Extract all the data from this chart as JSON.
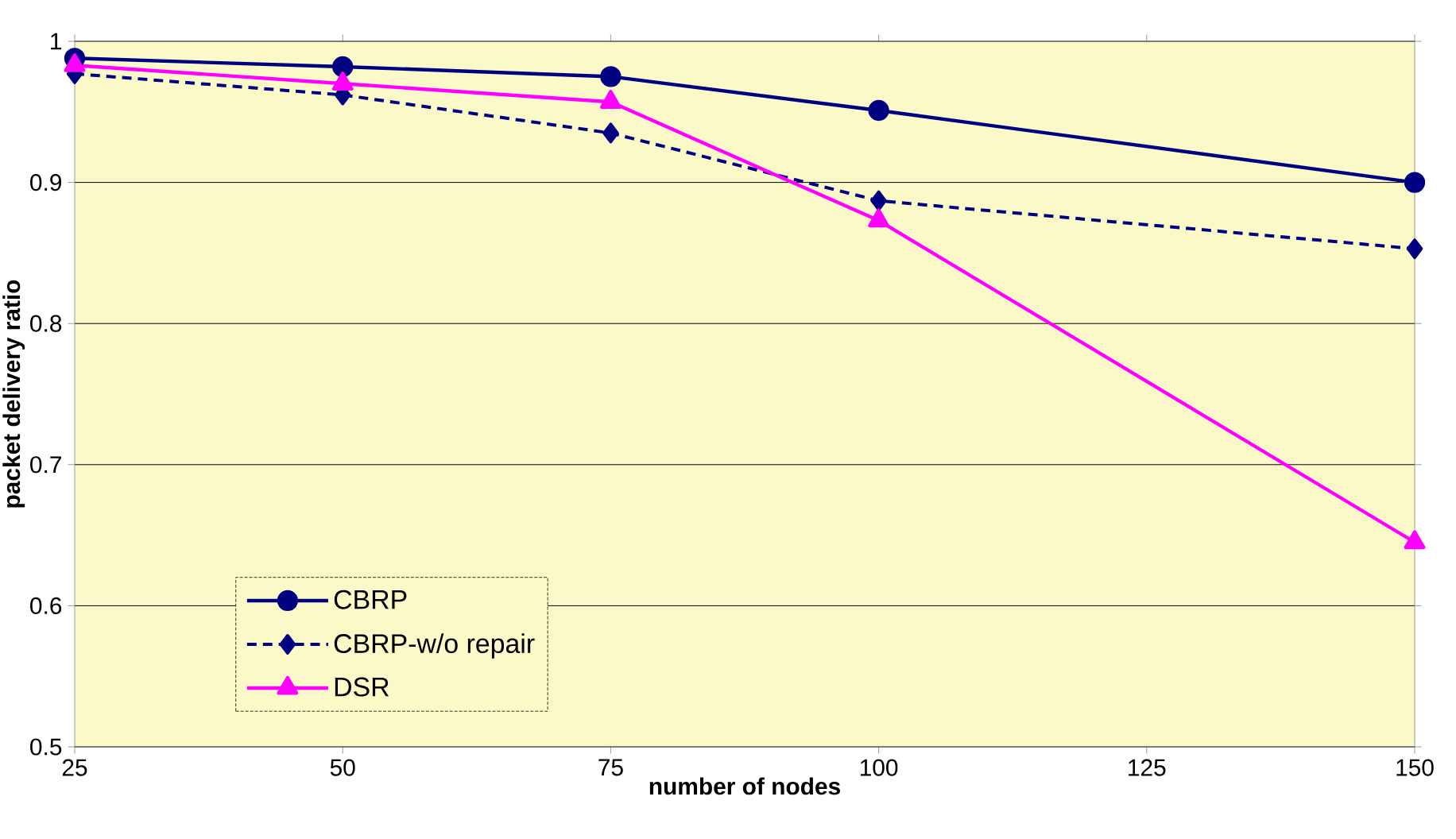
{
  "chart_data": {
    "type": "line",
    "xlabel": "number of nodes",
    "ylabel": "packet delivery ratio",
    "x": [
      25,
      50,
      75,
      100,
      150
    ],
    "series": [
      {
        "name": "CBRP",
        "color": "#000080",
        "marker": "circle",
        "line_style": "solid",
        "values": [
          0.988,
          0.982,
          0.975,
          0.951,
          0.9
        ]
      },
      {
        "name": "CBRP-w/o repair",
        "color": "#000080",
        "marker": "diamond",
        "line_style": "dashed",
        "values": [
          0.977,
          0.962,
          0.935,
          0.887,
          0.853
        ]
      },
      {
        "name": "DSR",
        "color": "#ff00ff",
        "marker": "triangle",
        "line_style": "solid",
        "values": [
          0.983,
          0.97,
          0.957,
          0.873,
          0.645
        ]
      }
    ],
    "xlim": [
      25,
      150
    ],
    "xticks": [
      25,
      50,
      75,
      100,
      125,
      150
    ],
    "ylim": [
      0.5,
      1
    ],
    "yticks": [
      0.5,
      0.6,
      0.7,
      0.8,
      0.9,
      1
    ],
    "grid": "y",
    "legend": "bottom left"
  }
}
